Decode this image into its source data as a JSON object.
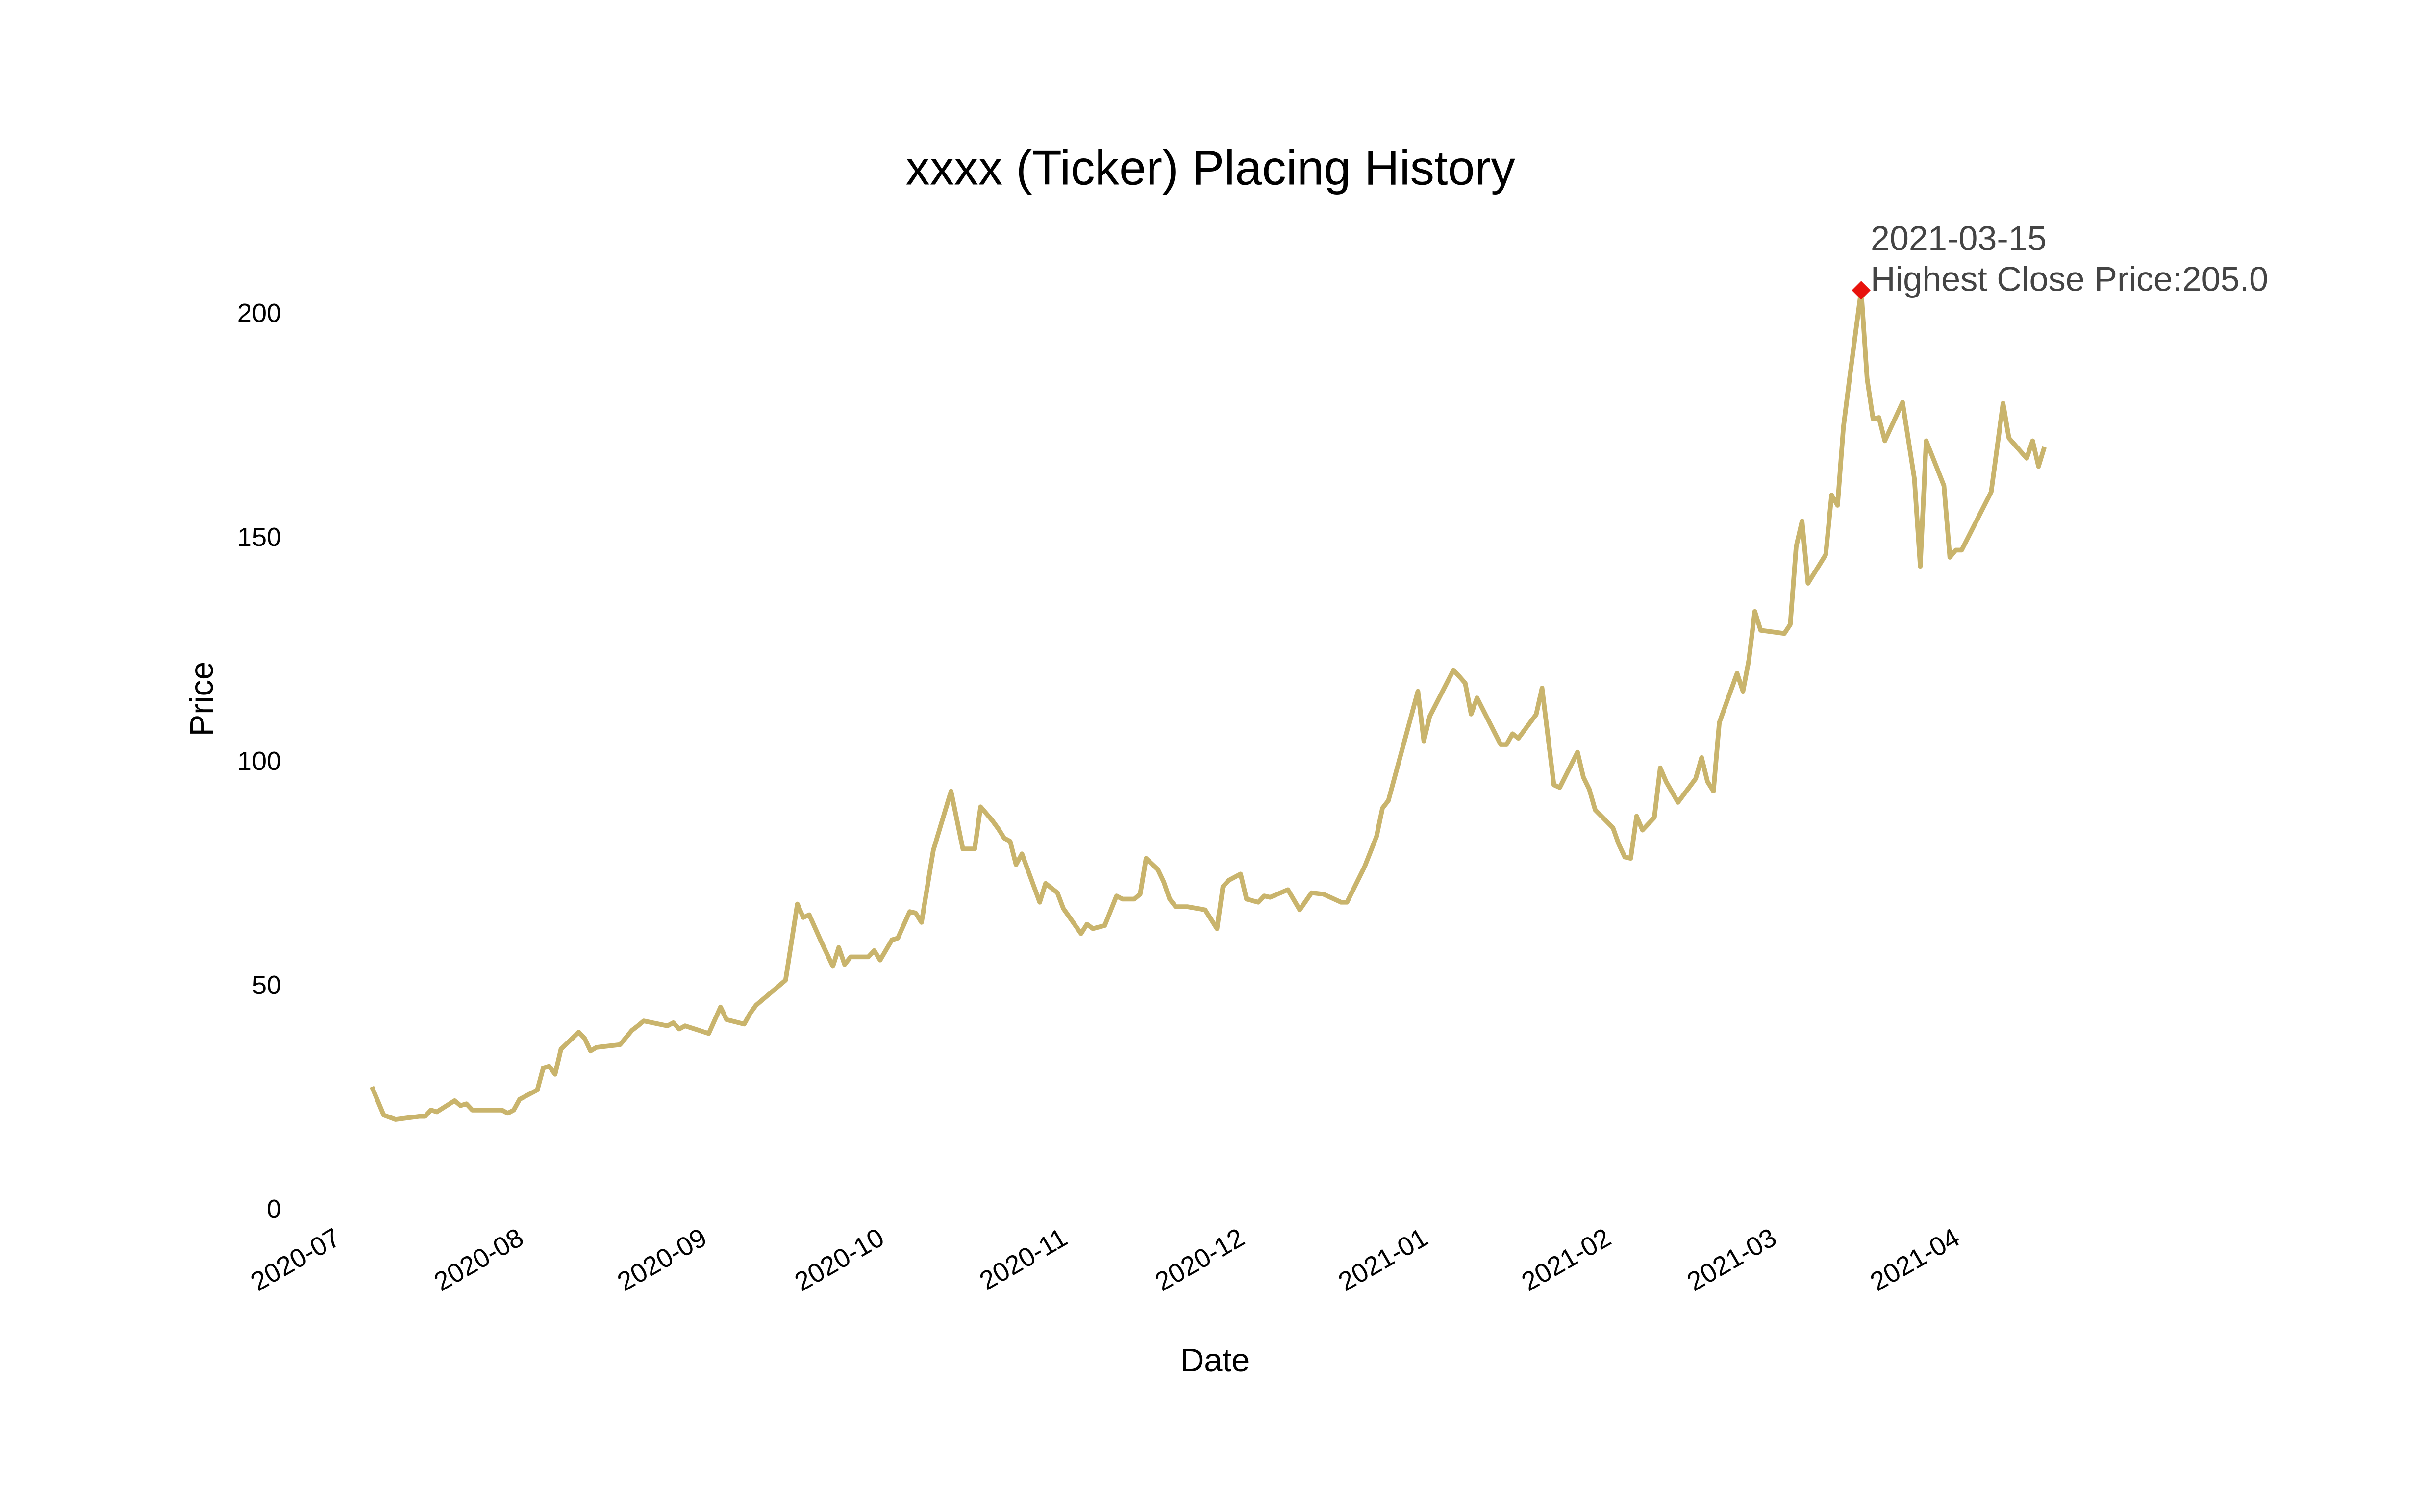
{
  "chart_data": {
    "type": "line",
    "title": "xxxx (Ticker) Placing History",
    "x_label": "Date",
    "y_label": "Price",
    "color": "#c9b46c",
    "grid": false,
    "xlim": [
      "2020-06-26",
      "2021-04-21"
    ],
    "xticks": [
      "2020-07",
      "2020-08",
      "2020-09",
      "2020-10",
      "2020-11",
      "2020-12",
      "2021-01",
      "2021-02",
      "2021-03",
      "2021-04"
    ],
    "ylim": [
      0,
      215
    ],
    "yticks": [
      0,
      50,
      100,
      150,
      200
    ],
    "x": [
      "2020-07-06",
      "2020-07-08",
      "2020-07-10",
      "2020-07-14",
      "2020-07-15",
      "2020-07-16",
      "2020-07-17",
      "2020-07-20",
      "2020-07-21",
      "2020-07-22",
      "2020-07-23",
      "2020-07-28",
      "2020-07-29",
      "2020-07-30",
      "2020-07-31",
      "2020-08-03",
      "2020-08-04",
      "2020-08-05",
      "2020-08-06",
      "2020-08-07",
      "2020-08-10",
      "2020-08-11",
      "2020-08-12",
      "2020-08-13",
      "2020-08-17",
      "2020-08-19",
      "2020-08-20",
      "2020-08-21",
      "2020-08-25",
      "2020-08-26",
      "2020-08-27",
      "2020-08-28",
      "2020-09-01",
      "2020-09-03",
      "2020-09-04",
      "2020-09-07",
      "2020-09-08",
      "2020-09-09",
      "2020-09-14",
      "2020-09-16",
      "2020-09-17",
      "2020-09-18",
      "2020-09-20",
      "2020-09-22",
      "2020-09-23",
      "2020-09-24",
      "2020-09-25",
      "2020-09-28",
      "2020-09-29",
      "2020-09-30",
      "2020-10-02",
      "2020-10-03",
      "2020-10-05",
      "2020-10-06",
      "2020-10-07",
      "2020-10-09",
      "2020-10-12",
      "2020-10-14",
      "2020-10-16",
      "2020-10-17",
      "2020-10-19",
      "2020-10-20",
      "2020-10-21",
      "2020-10-22",
      "2020-10-23",
      "2020-10-24",
      "2020-10-27",
      "2020-10-28",
      "2020-10-30",
      "2020-10-31",
      "2020-11-03",
      "2020-11-04",
      "2020-11-05",
      "2020-11-07",
      "2020-11-09",
      "2020-11-10",
      "2020-11-12",
      "2020-11-13",
      "2020-11-14",
      "2020-11-16",
      "2020-11-17",
      "2020-11-18",
      "2020-11-19",
      "2020-11-20",
      "2020-11-21",
      "2020-11-24",
      "2020-11-26",
      "2020-11-27",
      "2020-11-28",
      "2020-11-30",
      "2020-12-01",
      "2020-12-03",
      "2020-12-04",
      "2020-12-05",
      "2020-12-08",
      "2020-12-10",
      "2020-12-12",
      "2020-12-14",
      "2020-12-17",
      "2020-12-18",
      "2020-12-21",
      "2020-12-23",
      "2020-12-24",
      "2020-12-25",
      "2020-12-30",
      "2020-12-31",
      "2021-01-01",
      "2021-01-05",
      "2021-01-06",
      "2021-01-07",
      "2021-01-08",
      "2021-01-09",
      "2021-01-13",
      "2021-01-14",
      "2021-01-15",
      "2021-01-16",
      "2021-01-19",
      "2021-01-20",
      "2021-01-22",
      "2021-01-23",
      "2021-01-26",
      "2021-01-27",
      "2021-01-28",
      "2021-01-29",
      "2021-02-01",
      "2021-02-02",
      "2021-02-03",
      "2021-02-04",
      "2021-02-05",
      "2021-02-06",
      "2021-02-08",
      "2021-02-09",
      "2021-02-10",
      "2021-02-12",
      "2021-02-15",
      "2021-02-16",
      "2021-02-17",
      "2021-02-18",
      "2021-02-19",
      "2021-02-22",
      "2021-02-23",
      "2021-02-24",
      "2021-02-25",
      "2021-02-26",
      "2021-03-02",
      "2021-03-03",
      "2021-03-04",
      "2021-03-05",
      "2021-03-06",
      "2021-03-09",
      "2021-03-10",
      "2021-03-11",
      "2021-03-12",
      "2021-03-13",
      "2021-03-15",
      "2021-03-16",
      "2021-03-17",
      "2021-03-18",
      "2021-03-19",
      "2021-03-22",
      "2021-03-24",
      "2021-03-25",
      "2021-03-26",
      "2021-03-29",
      "2021-03-30",
      "2021-03-31",
      "2021-04-01",
      "2021-04-06",
      "2021-04-08",
      "2021-04-09",
      "2021-04-12",
      "2021-04-13",
      "2021-04-14",
      "2021-04-15"
    ],
    "values": [
      27.2,
      20.9,
      19.9,
      20.6,
      20.6,
      22,
      21.6,
      24.1,
      23,
      23.4,
      22,
      22,
      21.3,
      22,
      24.4,
      26.5,
      31.4,
      31.8,
      30,
      35.6,
      39.4,
      38,
      35.2,
      36,
      36.6,
      39.8,
      40.8,
      41.9,
      40.8,
      41.5,
      40.1,
      40.8,
      39.1,
      45,
      42.2,
      41.2,
      43.6,
      45.4,
      51,
      68,
      65,
      65.6,
      59.7,
      54.1,
      58.3,
      54.5,
      56.2,
      56.2,
      57.6,
      55.5,
      60,
      60.4,
      66.3,
      66,
      63.9,
      80,
      93.2,
      80.3,
      80.3,
      89.7,
      86.6,
      84.8,
      82.7,
      82,
      76.8,
      79.2,
      68.4,
      72.6,
      70.5,
      67,
      61.4,
      63.5,
      62.5,
      63.2,
      69.8,
      69.1,
      69.1,
      70.2,
      78.2,
      75.7,
      72.9,
      69.1,
      67.4,
      67.4,
      67.4,
      66.7,
      62.5,
      71.9,
      73.3,
      74.7,
      69.1,
      68.4,
      69.8,
      69.5,
      71.2,
      66.7,
      70.5,
      70.2,
      68.4,
      68.4,
      76.4,
      83.1,
      89.4,
      91.1,
      115.5,
      104.4,
      109.9,
      120.2,
      118.8,
      117.3,
      110.4,
      114,
      103.6,
      103.6,
      106,
      105,
      110.3,
      116.2,
      94.6,
      94,
      101.9,
      96.3,
      93.6,
      89,
      85,
      81.3,
      78.5,
      78.2,
      87.6,
      84.5,
      87.3,
      98.4,
      95.3,
      90.7,
      96,
      100.7,
      95.3,
      93.2,
      108.5,
      119.5,
      115.5,
      122.5,
      133.3,
      129.1,
      128.4,
      130.4,
      147.8,
      153.5,
      139.6,
      146,
      159.3,
      157,
      174.5,
      185,
      205,
      185.3,
      176.3,
      176.6,
      171.4,
      180,
      163,
      143.4,
      171.4,
      161.4,
      145.4,
      147,
      147,
      160,
      179.8,
      172,
      167.5,
      171.4,
      165.7,
      170
    ],
    "annotation": {
      "x": "2021-03-15",
      "value": 205,
      "color": "#e8120c",
      "lines": [
        "2021-03-15",
        "Highest Close Price:205.0"
      ]
    }
  }
}
